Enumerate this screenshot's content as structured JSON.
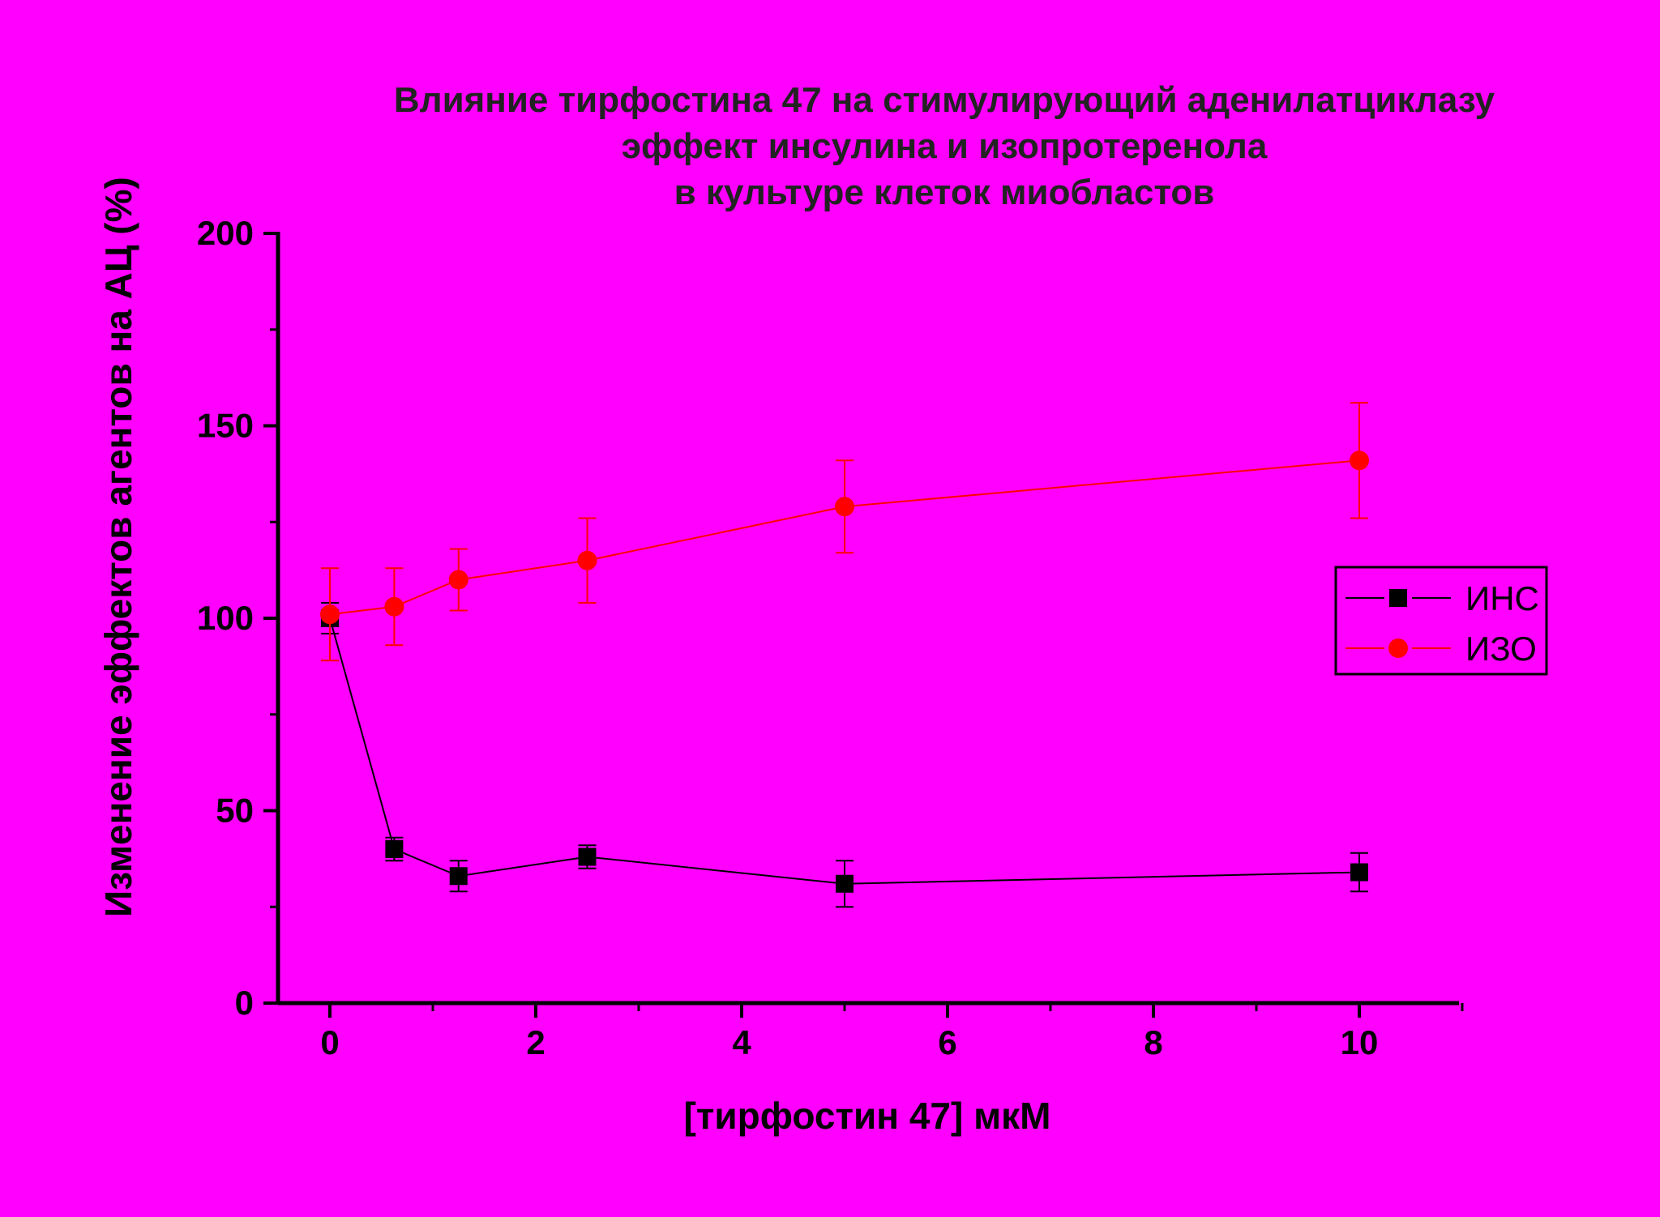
{
  "chart_data": {
    "type": "line",
    "title": [
      "Влияние тирфостина 47 на стимулирующий аденилатциклазу",
      "эффект инсулина и изопротеренола",
      "в культуре клеток миобластов"
    ],
    "xlabel": "[тирфостин 47] мкМ",
    "ylabel": "Изменение эффектов агентов на АЦ (%)",
    "xlim": [
      -0.5,
      11
    ],
    "ylim": [
      0,
      200
    ],
    "x_ticks": [
      "0",
      "2",
      "4",
      "6",
      "8",
      "10"
    ],
    "y_ticks": [
      "0",
      "50",
      "100",
      "150",
      "200"
    ],
    "grid": false,
    "legend_position": "right",
    "series": [
      {
        "name": "ИНС",
        "color": "#000000",
        "marker": "square",
        "x": [
          0,
          0.625,
          1.25,
          2.5,
          5,
          10
        ],
        "y": [
          100,
          40,
          33,
          38,
          31,
          34
        ],
        "error": [
          4,
          3,
          4,
          3,
          6,
          5
        ]
      },
      {
        "name": "ИЗО",
        "color": "#FF0000",
        "marker": "circle",
        "x": [
          0,
          0.625,
          1.25,
          2.5,
          5,
          10
        ],
        "y": [
          101,
          103,
          110,
          115,
          129,
          141
        ],
        "error": [
          12,
          10,
          8,
          11,
          12,
          15
        ]
      }
    ]
  }
}
